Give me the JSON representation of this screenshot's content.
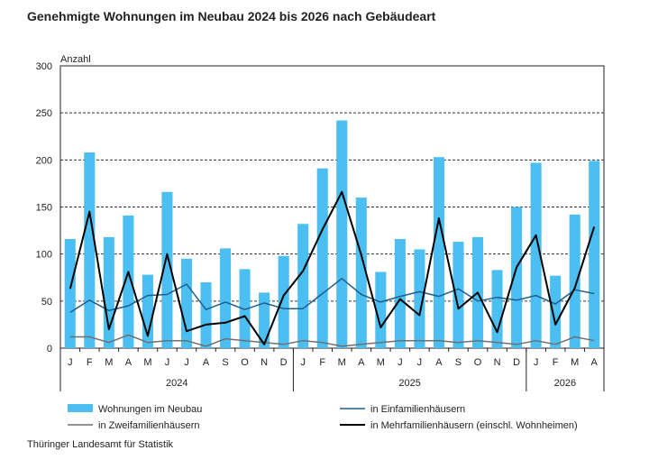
{
  "chart_data": {
    "type": "bar",
    "title": "Genehmigte Wohnungen im Neubau 2024 bis 2026 nach Gebäudeart",
    "ylabel": "Anzahl",
    "ylim": [
      0,
      300
    ],
    "yticks": [
      0,
      50,
      100,
      150,
      200,
      250,
      300
    ],
    "grid": true,
    "legend_position": "bottom",
    "months": [
      "J",
      "F",
      "M",
      "A",
      "M",
      "J",
      "J",
      "A",
      "S",
      "O",
      "N",
      "D",
      "J",
      "F",
      "M",
      "A",
      "M",
      "J",
      "J",
      "A",
      "S",
      "O",
      "N",
      "D",
      "J",
      "F",
      "M",
      "A"
    ],
    "years": [
      {
        "label": "2024",
        "count": 12
      },
      {
        "label": "2025",
        "count": 12
      },
      {
        "label": "2026",
        "count": 4
      }
    ],
    "series": [
      {
        "name": "Wohnungen im Neubau",
        "kind": "bar",
        "color": "#4bbff2",
        "values": [
          116,
          208,
          118,
          141,
          78,
          166,
          95,
          70,
          106,
          84,
          59,
          98,
          132,
          191,
          242,
          160,
          81,
          116,
          105,
          203,
          113,
          118,
          83,
          150,
          197,
          77,
          142,
          199
        ]
      },
      {
        "name": "in Einfamilienhäusern",
        "kind": "line",
        "color": "#1f5e8c",
        "values": [
          38,
          51,
          40,
          45,
          56,
          57,
          68,
          41,
          49,
          41,
          48,
          42,
          42,
          58,
          74,
          57,
          49,
          55,
          60,
          55,
          63,
          50,
          54,
          51,
          56,
          47,
          62,
          58
        ]
      },
      {
        "name": "in Zweifamilienhäusern",
        "kind": "line",
        "color": "#6f6f6f",
        "values": [
          12,
          12,
          6,
          14,
          6,
          8,
          8,
          2,
          10,
          8,
          6,
          4,
          8,
          6,
          2,
          4,
          6,
          8,
          8,
          8,
          6,
          8,
          6,
          4,
          8,
          4,
          12,
          8
        ]
      },
      {
        "name": "in Mehrfamilienhäusern (einschl. Wohnheimen)",
        "kind": "line",
        "color": "#000000",
        "values": [
          63,
          145,
          20,
          81,
          13,
          100,
          18,
          25,
          27,
          34,
          4,
          56,
          82,
          126,
          166,
          99,
          22,
          52,
          35,
          138,
          42,
          59,
          17,
          86,
          120,
          25,
          64,
          129
        ]
      }
    ]
  },
  "source": "Thüringer Landesamt für Statistik"
}
